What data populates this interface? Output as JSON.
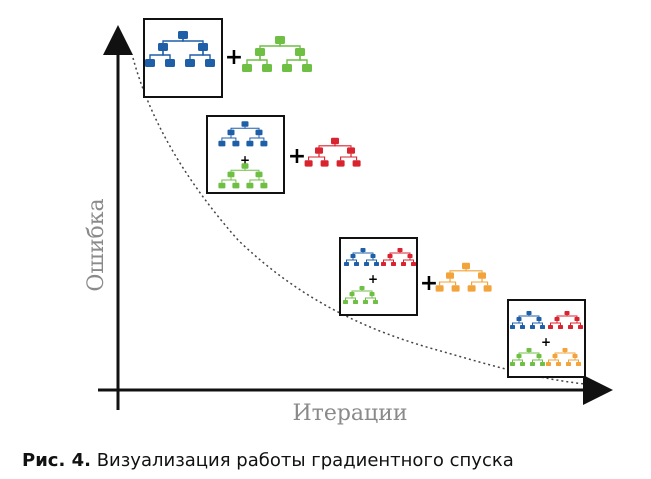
{
  "axes": {
    "xlabel": "Итерации",
    "ylabel": "Ошибка"
  },
  "plus_sign": "+",
  "caption": {
    "label": "Рис. 4.",
    "text": "Визуализация работы градиентного спуска"
  },
  "colors": {
    "blue": "#1f5fa8",
    "green": "#6fbf45",
    "red": "#d9232e",
    "orange": "#f2a33a",
    "axis": "#111111",
    "curve": "#444444",
    "label": "#8a8a8a"
  },
  "stages": [
    {
      "box_trees": [
        "blue"
      ],
      "added_tree": "green"
    },
    {
      "box_trees": [
        "blue",
        "green"
      ],
      "added_tree": "red"
    },
    {
      "box_trees": [
        "blue",
        "red",
        "green"
      ],
      "added_tree": "orange"
    },
    {
      "box_trees": [
        "blue",
        "red",
        "green",
        "orange"
      ],
      "added_tree": null
    }
  ]
}
